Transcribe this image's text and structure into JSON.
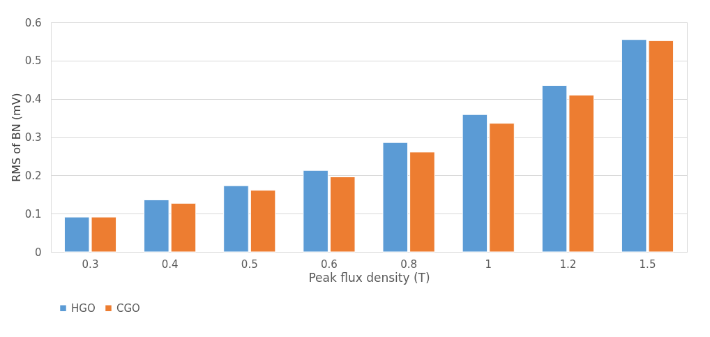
{
  "chart_data": {
    "type": "bar",
    "xlabel": "Peak flux density (T)",
    "ylabel": "RMS of BN (mV)",
    "categories": [
      "0.3",
      "0.4",
      "0.5",
      "0.6",
      "0.8",
      "1",
      "1.2",
      "1.5"
    ],
    "series": [
      {
        "name": "HGO",
        "color": "#5b9bd5",
        "values": [
          0.091,
          0.136,
          0.173,
          0.213,
          0.286,
          0.359,
          0.435,
          0.555
        ]
      },
      {
        "name": "CGO",
        "color": "#ed7d31",
        "values": [
          0.091,
          0.127,
          0.161,
          0.196,
          0.261,
          0.336,
          0.41,
          0.552
        ]
      }
    ],
    "ylim": [
      0,
      0.6
    ],
    "yticks": [
      0,
      0.1,
      0.2,
      0.3,
      0.4,
      0.5,
      0.6
    ],
    "grid": "y",
    "legend": "bottom"
  }
}
